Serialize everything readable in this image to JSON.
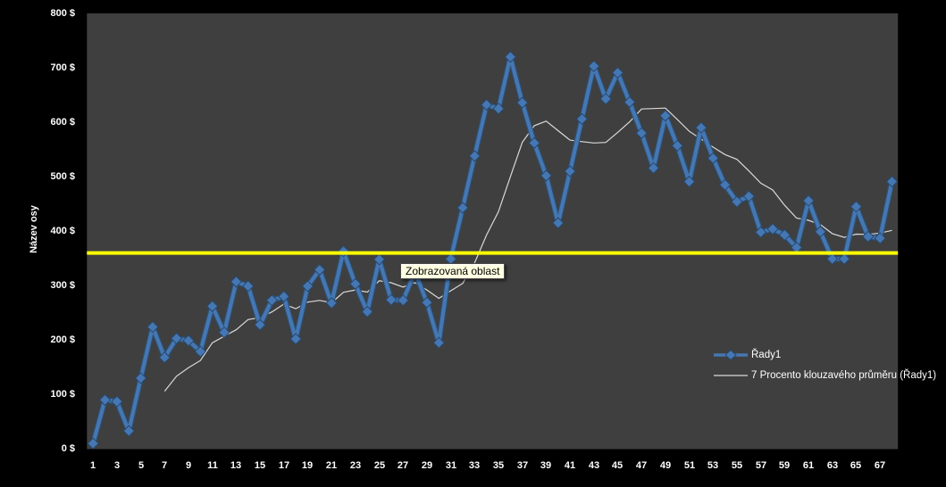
{
  "axis": {
    "y_title": "Název osy",
    "y_tick_labels": [
      "800 $",
      "700 $",
      "600 $",
      "500 $",
      "400 $",
      "300 $",
      "200 $",
      "100 $",
      "0 $"
    ],
    "y_tick_values": [
      800,
      700,
      600,
      500,
      400,
      300,
      200,
      100,
      0
    ],
    "x_tick_labels": [
      1,
      3,
      5,
      7,
      9,
      11,
      13,
      15,
      17,
      19,
      21,
      23,
      25,
      27,
      29,
      31,
      33,
      35,
      37,
      39,
      41,
      43,
      45,
      47,
      49,
      51,
      53,
      55,
      57,
      59,
      61,
      63,
      65,
      67
    ]
  },
  "legend": {
    "items": [
      {
        "label": "Řady1",
        "symbol": "blue-line-with-diamond-marker"
      },
      {
        "label": "7 Procento klouzavého průměru (Řady1)",
        "symbol": "thin-gray-line"
      }
    ]
  },
  "tooltip": {
    "text": "Zobrazovaná oblast"
  },
  "colors": {
    "background": "#000000",
    "plot_bg": "#3F3F3F",
    "series_blue": "#4677B2",
    "series_blue_dark": "#2B5176",
    "marker_fill": "#4677B2",
    "marker_stroke": "#27496F",
    "ma_line": "#D9D9D9",
    "reference_yellow": "#FFFF00",
    "axis_text": "#FFFFFF",
    "tooltip_bg": "#FFFFE1",
    "tooltip_text": "#000000"
  },
  "chart_data": {
    "type": "line",
    "title": "",
    "xlabel": "",
    "ylabel": "Název osy",
    "ylim": [
      0,
      800
    ],
    "y_tick_format": "{n} $",
    "grid": false,
    "legend_position": "middle-right",
    "x": [
      1,
      2,
      3,
      4,
      5,
      6,
      7,
      8,
      9,
      10,
      11,
      12,
      13,
      14,
      15,
      16,
      17,
      18,
      19,
      20,
      21,
      22,
      23,
      24,
      25,
      26,
      27,
      28,
      29,
      30,
      31,
      32,
      33,
      34,
      35,
      36,
      37,
      38,
      39,
      40,
      41,
      42,
      43,
      44,
      45,
      46,
      47,
      48,
      49,
      50,
      51,
      52,
      53,
      54,
      55,
      56,
      57,
      58,
      59,
      60,
      61,
      62,
      63,
      64,
      65,
      66,
      67,
      68
    ],
    "series": [
      {
        "name": "Řady1",
        "values": [
          10,
          90,
          87,
          33,
          130,
          224,
          168,
          203,
          199,
          179,
          262,
          214,
          307,
          299,
          228,
          273,
          280,
          202,
          299,
          329,
          268,
          363,
          303,
          252,
          348,
          274,
          273,
          325,
          269,
          195,
          349,
          443,
          538,
          632,
          625,
          720,
          636,
          562,
          502,
          415,
          510,
          606,
          703,
          643,
          691,
          637,
          580,
          516,
          612,
          557,
          491,
          590,
          534,
          485,
          454,
          464,
          398,
          404,
          393,
          370,
          456,
          399,
          349,
          349,
          445,
          390,
          387,
          491
        ]
      },
      {
        "name": "7 Procento klouzavého průměru (Řady1)",
        "derived": "7-point moving average of Řady1, plotted from point 7"
      }
    ],
    "moving_average_window": 7,
    "reference_line": {
      "value": 360,
      "color": "#FFFF00"
    },
    "annotation": {
      "text": "Zobrazovaná oblast",
      "near_point": 28
    }
  }
}
